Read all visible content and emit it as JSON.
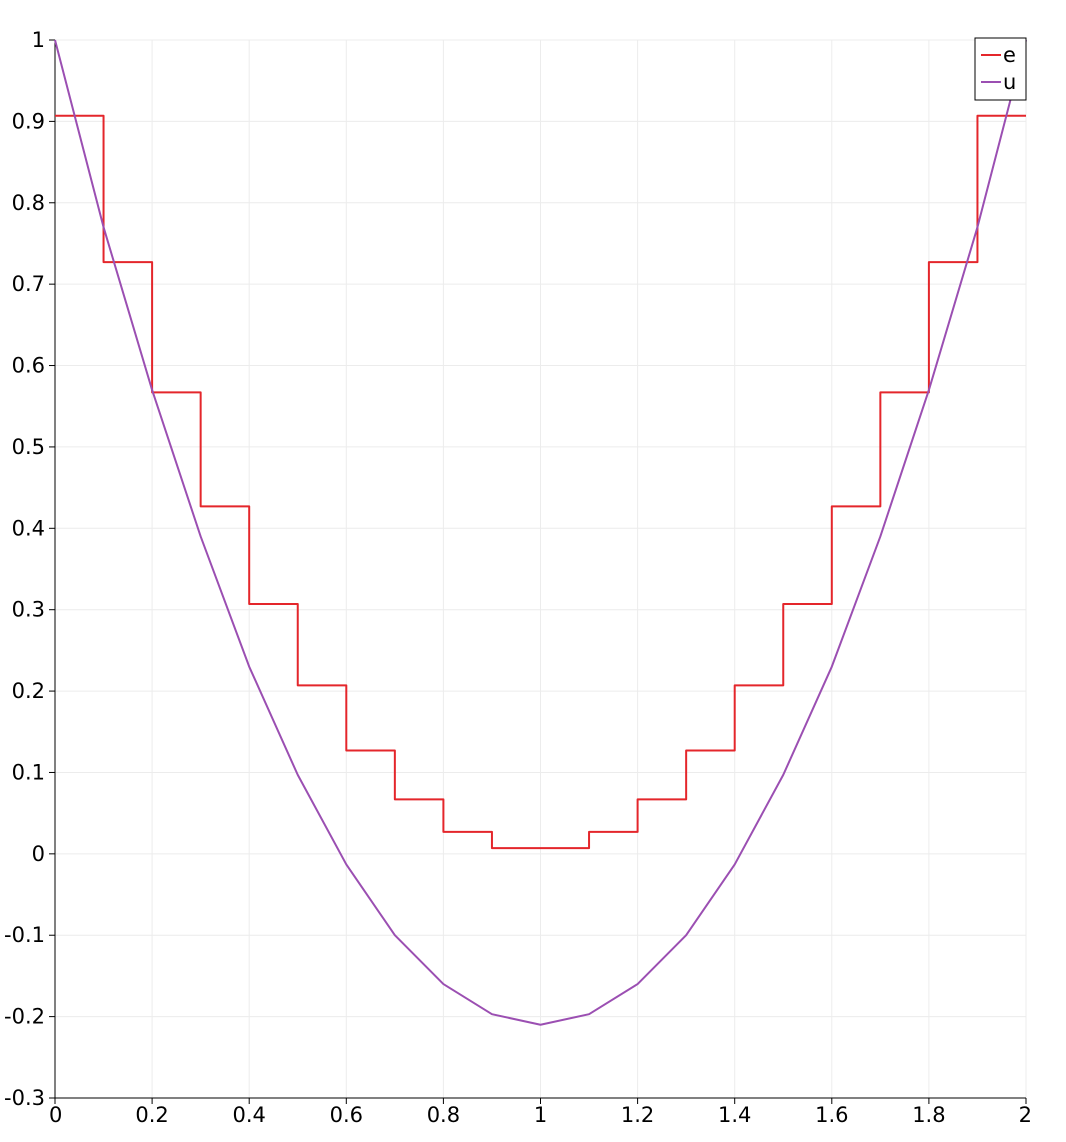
{
  "chart_data": {
    "type": "line",
    "title": "",
    "xlabel": "",
    "ylabel": "",
    "xlim": [
      0,
      2
    ],
    "ylim": [
      -0.3,
      1
    ],
    "grid": true,
    "legend_placement": "top-right",
    "x_ticks": [
      "0",
      "0.2",
      "0.4",
      "0.6",
      "0.8",
      "1",
      "1.2",
      "1.4",
      "1.6",
      "1.8",
      "2"
    ],
    "y_ticks": [
      "1",
      "0.9",
      "0.8",
      "0.7",
      "0.6",
      "0.5",
      "0.4",
      "0.3",
      "0.2",
      "0.1",
      "0",
      "-0.1",
      "-0.2",
      "-0.3"
    ],
    "series": [
      {
        "name": "e",
        "color": "#e4262b",
        "style": "step",
        "x": [
          0,
          0.1,
          0.1,
          0.2,
          0.2,
          0.3,
          0.3,
          0.4,
          0.4,
          0.5,
          0.5,
          0.6,
          0.6,
          0.7,
          0.7,
          0.8,
          0.8,
          0.9,
          0.9,
          1.1,
          1.1,
          1.2,
          1.2,
          1.3,
          1.3,
          1.4,
          1.4,
          1.5,
          1.5,
          1.6,
          1.6,
          1.7,
          1.7,
          1.8,
          1.8,
          1.9,
          1.9,
          2.0
        ],
        "y": [
          0.907,
          0.907,
          0.727,
          0.727,
          0.567,
          0.567,
          0.427,
          0.427,
          0.307,
          0.307,
          0.207,
          0.207,
          0.127,
          0.127,
          0.067,
          0.067,
          0.027,
          0.027,
          0.007,
          0.007,
          0.027,
          0.027,
          0.067,
          0.067,
          0.127,
          0.127,
          0.207,
          0.207,
          0.307,
          0.307,
          0.427,
          0.427,
          0.567,
          0.567,
          0.727,
          0.727,
          0.907,
          0.907
        ]
      },
      {
        "name": "u",
        "color": "#9b4fb2",
        "style": "line",
        "x": [
          0,
          0.1,
          0.2,
          0.3,
          0.4,
          0.5,
          0.6,
          0.7,
          0.8,
          0.9,
          1.0,
          1.1,
          1.2,
          1.3,
          1.4,
          1.5,
          1.6,
          1.7,
          1.8,
          1.9,
          2.0
        ],
        "y": [
          1.0,
          0.77,
          0.57,
          0.39,
          0.23,
          0.097,
          -0.013,
          -0.1,
          -0.16,
          -0.197,
          -0.21,
          -0.197,
          -0.16,
          -0.1,
          -0.013,
          0.097,
          0.23,
          0.39,
          0.57,
          0.77,
          1.0
        ]
      }
    ]
  }
}
